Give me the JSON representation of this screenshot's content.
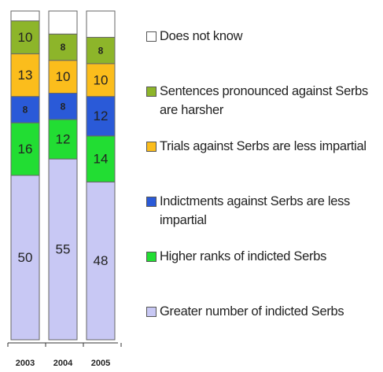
{
  "chart_data": {
    "type": "stacked_bar",
    "categories": [
      "2003",
      "2004",
      "2005"
    ],
    "ylim": [
      0,
      100
    ],
    "series": [
      {
        "name": "Greater number of indicted Serbs",
        "color": "#c8c8f4",
        "values": [
          50,
          55,
          48
        ]
      },
      {
        "name": "Higher ranks of indicted Serbs",
        "color": "#22dd33",
        "values": [
          16,
          12,
          14
        ]
      },
      {
        "name": "Indictments against Serbs are less impartial",
        "color": "#2a5ad8",
        "values": [
          8,
          8,
          12
        ]
      },
      {
        "name": "Trials against Serbs are less impartial",
        "color": "#fbbd1c",
        "values": [
          13,
          10,
          10
        ]
      },
      {
        "name": "Sentences pronounced against Serbs are harsher",
        "color": "#8db52a",
        "values": [
          10,
          8,
          8
        ]
      },
      {
        "name": "Does not know",
        "color": "#ffffff",
        "values": [
          3,
          7,
          8
        ],
        "labels": false
      }
    ]
  }
}
